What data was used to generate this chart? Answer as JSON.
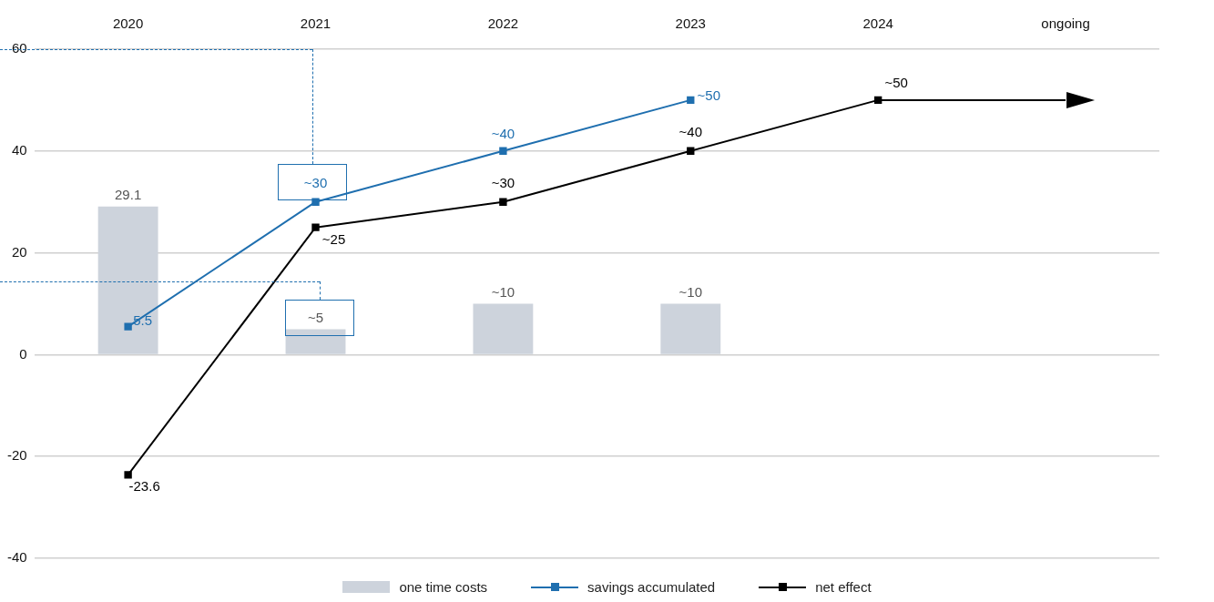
{
  "chart_data": {
    "type": "bar",
    "categories": [
      "2020",
      "2021",
      "2022",
      "2023",
      "2024",
      "ongoing"
    ],
    "series": [
      {
        "name": "one time costs",
        "color": "#cdd3dc",
        "values": [
          29.1,
          5,
          10,
          10,
          null,
          null
        ],
        "value_labels": [
          "29.1",
          "~5",
          "~10",
          "~10",
          null,
          null
        ]
      },
      {
        "name": "savings accumulated",
        "type": "line",
        "color": "#1f6faf",
        "marker": "square",
        "values": [
          5.5,
          30,
          40,
          50,
          null,
          null
        ],
        "value_labels": [
          "5.5",
          "~30",
          "~40",
          "~50",
          null,
          null
        ]
      },
      {
        "name": "net effect",
        "type": "line",
        "color": "#000000",
        "marker": "square",
        "values": [
          -23.6,
          25,
          30,
          40,
          50,
          50
        ],
        "value_labels": [
          "-23.6",
          "~25",
          "~30",
          "~40",
          "~50",
          null
        ]
      }
    ],
    "ylim": [
      -40,
      60
    ],
    "yticks": [
      -40,
      -20,
      0,
      20,
      40,
      60
    ],
    "grid": "y",
    "legend": "bottom"
  }
}
